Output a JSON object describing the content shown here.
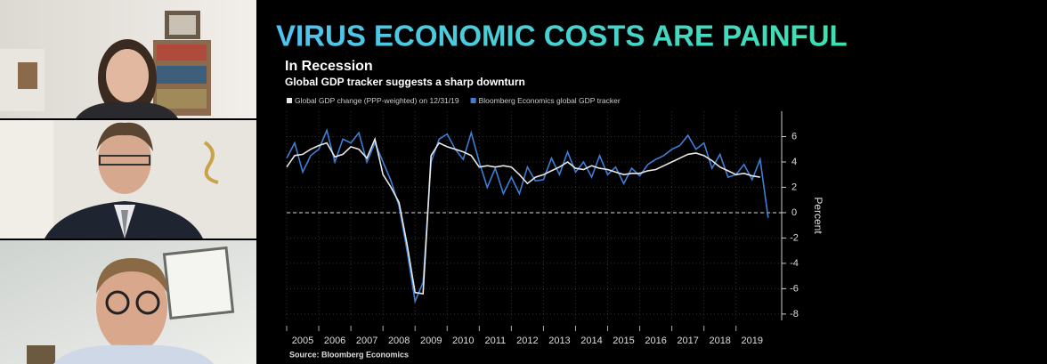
{
  "slide_title": "VIRUS ECONOMIC COSTS ARE PAINFUL",
  "chart_data": {
    "type": "line",
    "title": "In Recession",
    "subtitle": "Global GDP tracker suggests a sharp downturn",
    "y_label": "Percent",
    "source": "Source: Bloomberg Economics",
    "x": [
      2005,
      2005.25,
      2005.5,
      2005.75,
      2006,
      2006.25,
      2006.5,
      2006.75,
      2007,
      2007.25,
      2007.5,
      2007.75,
      2008,
      2008.25,
      2008.5,
      2008.75,
      2009,
      2009.25,
      2009.5,
      2009.75,
      2010,
      2010.25,
      2010.5,
      2010.75,
      2011,
      2011.25,
      2011.5,
      2011.75,
      2012,
      2012.25,
      2012.5,
      2012.75,
      2013,
      2013.25,
      2013.5,
      2013.75,
      2014,
      2014.25,
      2014.5,
      2014.75,
      2015,
      2015.25,
      2015.5,
      2015.75,
      2016,
      2016.25,
      2016.5,
      2016.75,
      2017,
      2017.25,
      2017.5,
      2017.75,
      2018,
      2018.25,
      2018.5,
      2018.75,
      2019,
      2019.25,
      2019.5,
      2019.75,
      2020
    ],
    "series": [
      {
        "name": "Global GDP change (PPP-weighted) on 12/31/19",
        "color": "#e8e8e8",
        "values": [
          3.6,
          4.5,
          4.6,
          5.0,
          5.3,
          5.5,
          4.4,
          4.6,
          5.2,
          5.0,
          4.3,
          5.8,
          3.0,
          2.0,
          0.8,
          -2.5,
          -6.3,
          -6.4,
          4.5,
          5.5,
          5.2,
          5.0,
          4.8,
          4.5,
          3.6,
          3.7,
          3.6,
          3.7,
          3.6,
          3.0,
          2.3,
          2.8,
          3.0,
          3.3,
          3.6,
          4.0,
          3.5,
          3.4,
          3.7,
          3.5,
          3.4,
          3.2,
          3.0,
          3.1,
          3.1,
          3.3,
          3.4,
          3.7,
          4.0,
          4.3,
          4.6,
          4.7,
          4.5,
          4.1,
          3.6,
          3.3,
          3.0,
          3.1,
          2.9,
          2.8,
          null
        ]
      },
      {
        "name": "Bloomberg Economics global GDP tracker",
        "color": "#3d7fd6",
        "values": [
          4.3,
          5.5,
          3.2,
          4.5,
          5.0,
          6.5,
          4.0,
          5.8,
          5.5,
          6.3,
          4.0,
          5.5,
          4.0,
          2.5,
          0.5,
          -3.0,
          -7.0,
          -5.5,
          4.0,
          5.8,
          6.2,
          5.0,
          4.2,
          6.3,
          4.0,
          2.0,
          3.5,
          1.5,
          2.8,
          1.5,
          3.6,
          2.5,
          2.6,
          4.3,
          3.0,
          4.8,
          3.2,
          4.0,
          2.8,
          4.5,
          3.0,
          3.6,
          2.3,
          3.5,
          2.9,
          3.8,
          4.2,
          4.5,
          5.0,
          5.3,
          6.1,
          5.0,
          5.5,
          3.5,
          4.6,
          2.8,
          3.0,
          3.8,
          2.6,
          4.2,
          -0.4
        ]
      }
    ],
    "xlim": [
      2005,
      2020.2
    ],
    "xticks": [
      2005,
      2006,
      2007,
      2008,
      2009,
      2010,
      2011,
      2012,
      2013,
      2014,
      2015,
      2016,
      2017,
      2018,
      2019
    ],
    "ylim": [
      -8.5,
      8
    ],
    "yticks": [
      -8,
      -6,
      -4,
      -2,
      0,
      2,
      4,
      6
    ],
    "reference_line": 0,
    "grid": true
  }
}
